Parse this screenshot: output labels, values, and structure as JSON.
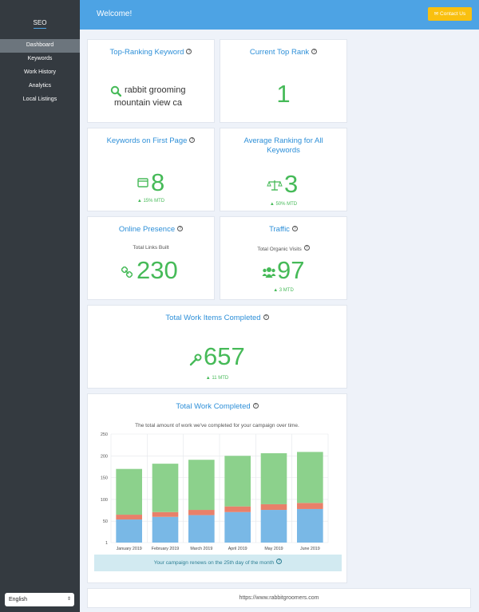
{
  "sidebar": {
    "brand": "SEO",
    "items": [
      {
        "label": "Dashboard"
      },
      {
        "label": "Keywords"
      },
      {
        "label": "Work History"
      },
      {
        "label": "Analytics"
      },
      {
        "label": "Local Listings"
      }
    ],
    "language": "English"
  },
  "header": {
    "title": "Welcome!",
    "contact_label": "Contact Us"
  },
  "cards": {
    "top_keyword": {
      "title": "Top-Ranking Keyword",
      "line1": "rabbit grooming",
      "line2": "mountain view ca"
    },
    "top_rank": {
      "title": "Current Top Rank",
      "value": "1"
    },
    "first_page": {
      "title": "Keywords on First Page",
      "value": "8",
      "change": "15% MTD"
    },
    "avg_rank": {
      "title_line1": "Average Ranking for All",
      "title_line2": "Keywords",
      "value": "3",
      "change": "50% MTD"
    },
    "online": {
      "title": "Online Presence",
      "subtitle": "Total Links Built",
      "value": "230"
    },
    "traffic": {
      "title": "Traffic",
      "subtitle": "Total Organic Visits",
      "value": "97",
      "change": "3 MTD"
    },
    "work_items": {
      "title": "Total Work Items Completed",
      "value": "657",
      "change": "11 MTD"
    },
    "work_chart": {
      "title": "Total Work Completed",
      "subtitle": "The total amount of work we've completed for your campaign over time.",
      "renew_note": "Your campaign renews on the 25th day of the month"
    }
  },
  "footer": {
    "url": "https://www.rabbitgroomers.com"
  },
  "chart_data": {
    "type": "bar",
    "stacked": true,
    "categories": [
      "January 2019",
      "February 2019",
      "March 2019",
      "April 2019",
      "May 2019",
      "June 2019"
    ],
    "series": [
      {
        "name": "blue",
        "color": "#79b8e6",
        "values": [
          54,
          60,
          64,
          71,
          76,
          78
        ]
      },
      {
        "name": "red",
        "color": "#e8806a",
        "values": [
          11,
          11,
          12,
          13,
          13,
          14
        ]
      },
      {
        "name": "green",
        "color": "#8cd18c",
        "values": [
          105,
          111,
          115,
          116,
          117,
          117
        ]
      }
    ],
    "yticks": [
      "250",
      "200",
      "150",
      "100",
      "50",
      "1"
    ],
    "ylim": [
      1,
      250
    ]
  },
  "colors": {
    "accent": "#4da3e4",
    "positive": "#46ba58",
    "contact": "#f9c00f"
  }
}
